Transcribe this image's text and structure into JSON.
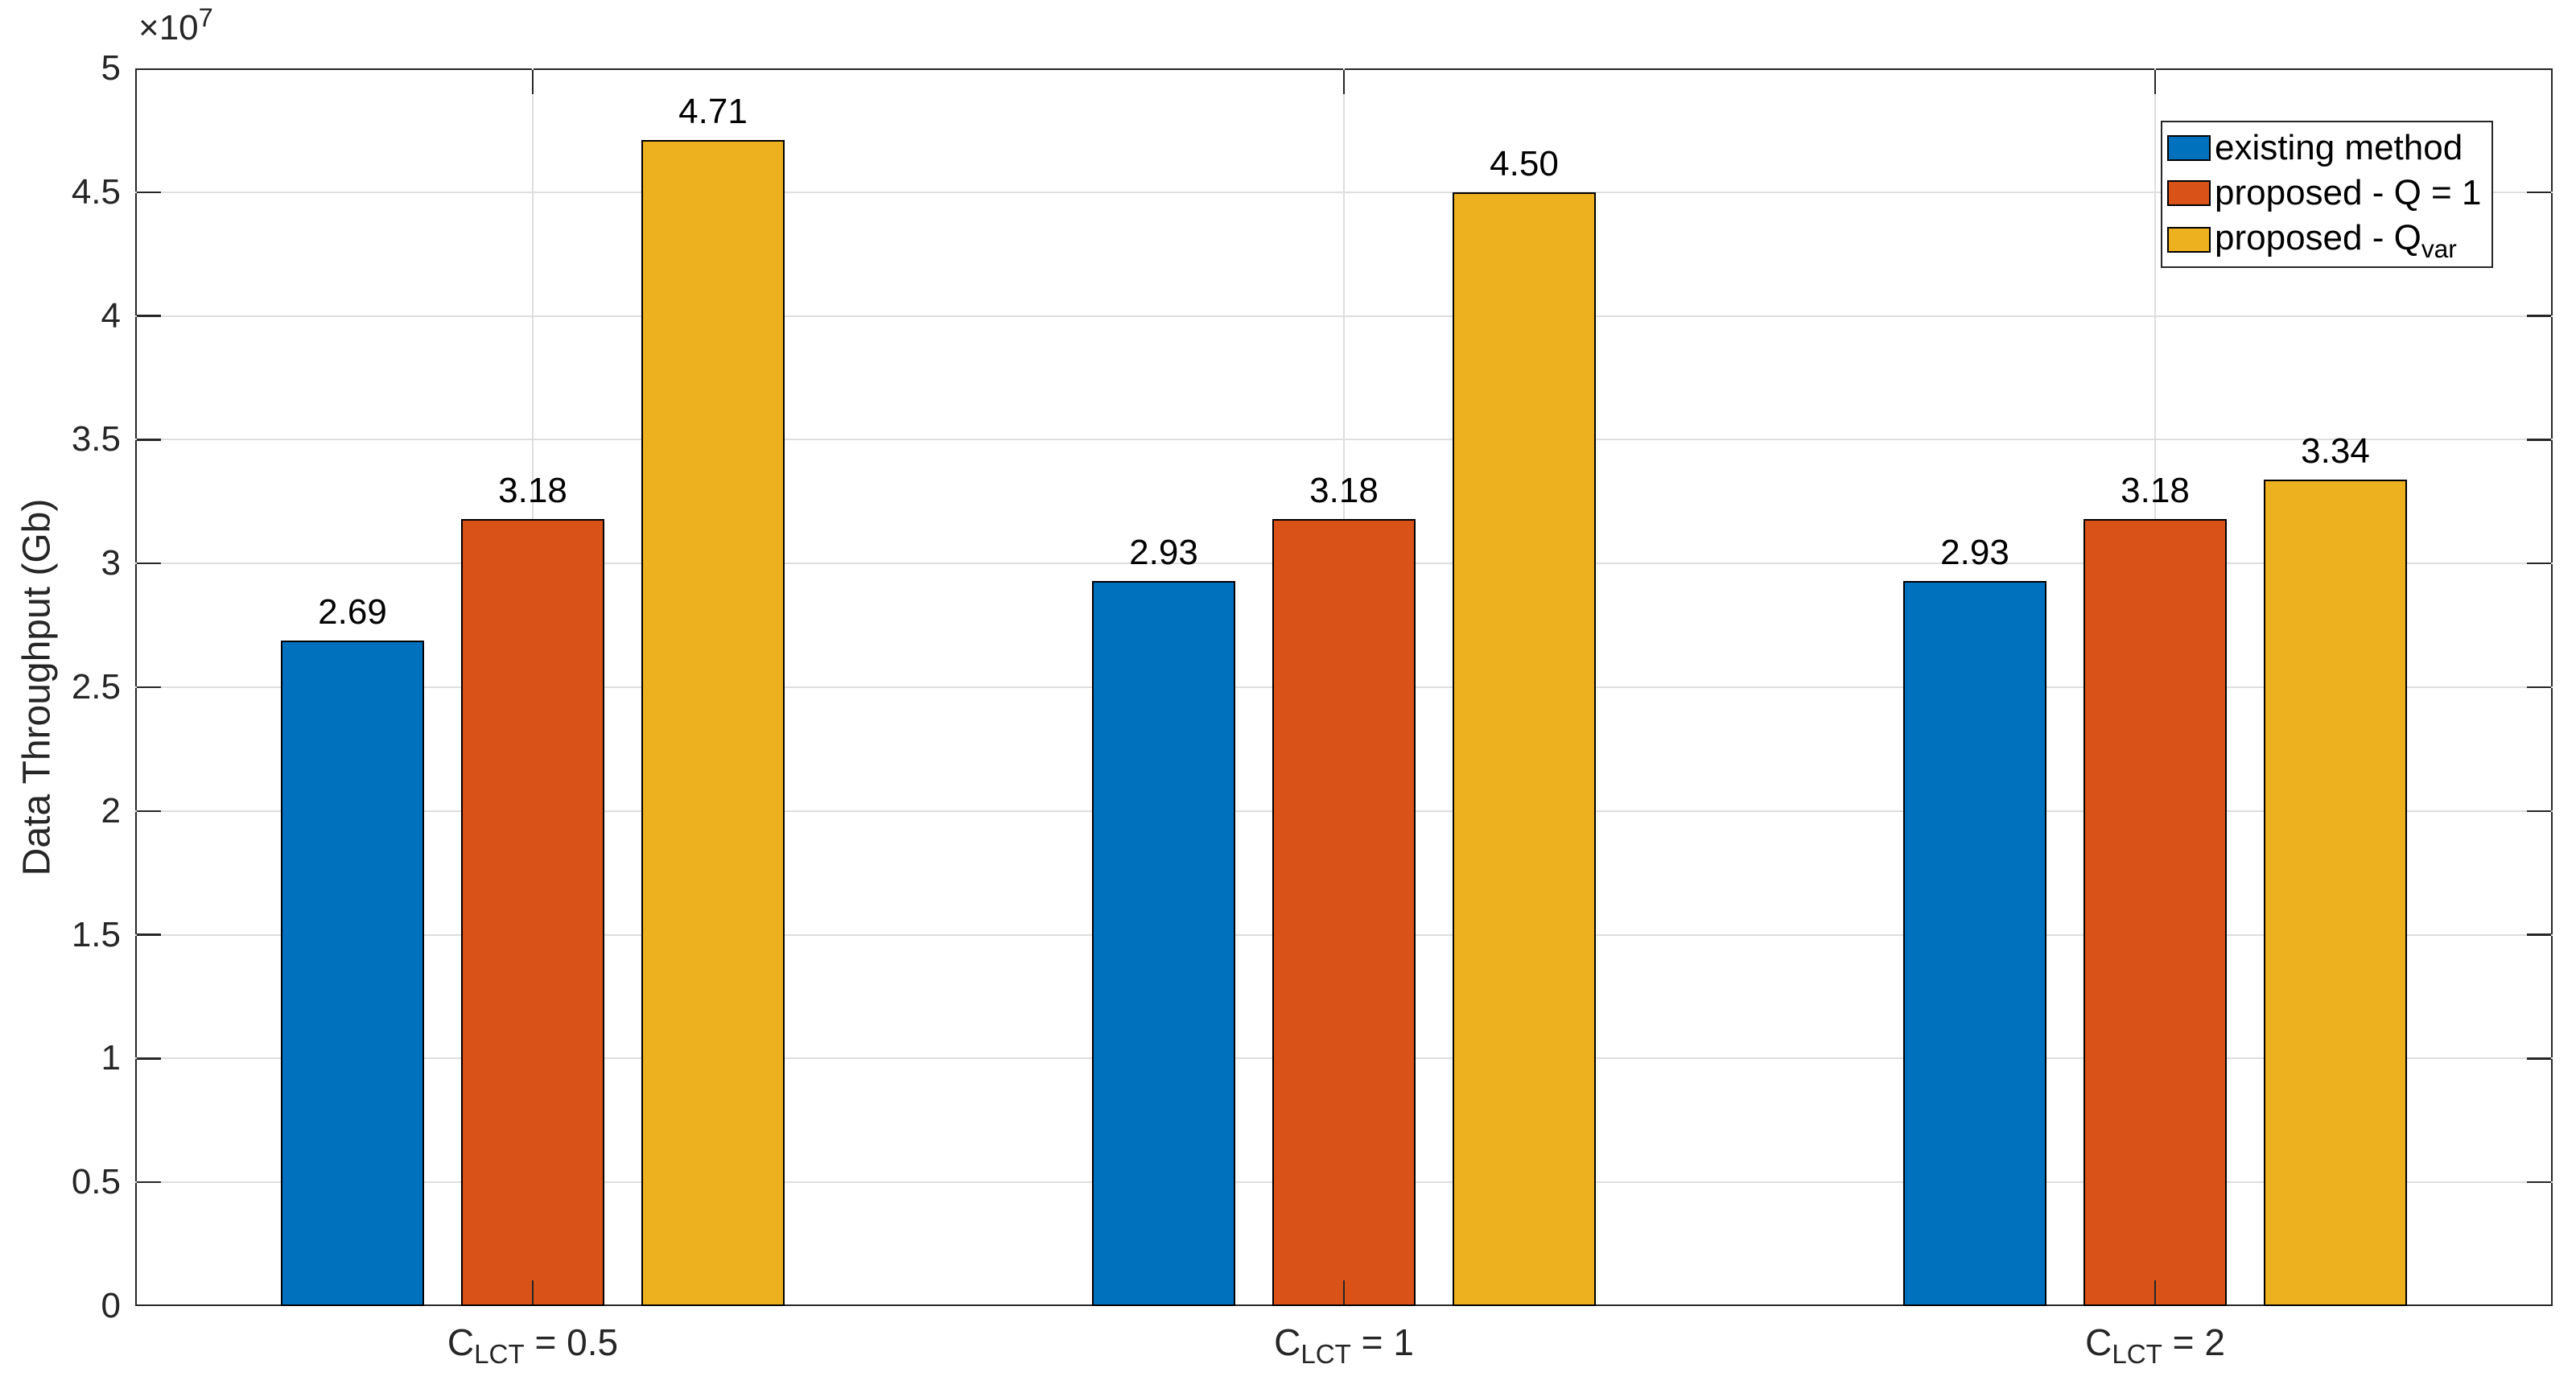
{
  "chart_data": {
    "type": "bar",
    "title": "",
    "xlabel": "",
    "ylabel": "Data Throughput (Gb)",
    "y_multiplier": {
      "base": "×10",
      "exponent": "7"
    },
    "ylim": [
      0,
      5
    ],
    "ytick_step": 0.5,
    "ytick_labels": [
      "0",
      "0.5",
      "1",
      "1.5",
      "2",
      "2.5",
      "3",
      "3.5",
      "4",
      "4.5",
      "5"
    ],
    "grid": "on",
    "legend_position": "northeast",
    "background_color": "#FFFFFF",
    "axis_color": "#262626",
    "grid_color": "#DEDEDE",
    "categories": [
      {
        "plain": "C_LCT = 0.5",
        "pre": "C",
        "sub": "LCT",
        "post": " = 0.5"
      },
      {
        "plain": "C_LCT = 1",
        "pre": "C",
        "sub": "LCT",
        "post": " = 1"
      },
      {
        "plain": "C_LCT = 2",
        "pre": "C",
        "sub": "LCT",
        "post": " = 2"
      }
    ],
    "series": [
      {
        "name": "existing method",
        "name_pre": "existing method",
        "name_sub": "",
        "color": "#0072BD",
        "values": [
          2.69,
          2.93,
          2.93
        ],
        "bar_labels": [
          "2.69",
          "2.93",
          "2.93"
        ]
      },
      {
        "name": "proposed - Q = 1",
        "name_pre": "proposed - Q = 1",
        "name_sub": "",
        "color": "#D95319",
        "values": [
          3.18,
          3.18,
          3.18
        ],
        "bar_labels": [
          "3.18",
          "3.18",
          "3.18"
        ]
      },
      {
        "name": "proposed - Q_var",
        "name_pre": "proposed - Q",
        "name_sub": "var",
        "color": "#EDB120",
        "values": [
          4.71,
          4.5,
          3.34
        ],
        "bar_labels": [
          "4.71",
          "4.50",
          "3.34"
        ]
      }
    ]
  }
}
